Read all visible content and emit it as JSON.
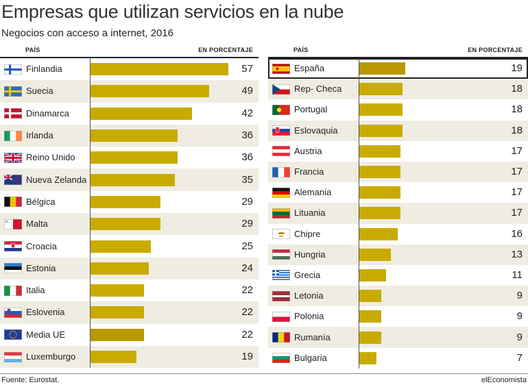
{
  "title": "Empresas que utilizan servicios en la nube",
  "subtitle": "Negocios con acceso a internet, 2016",
  "header": {
    "country_label": "PAÍS",
    "unit_label": "EN PORCENTAJE"
  },
  "source": "Fuente: Eurostat.",
  "brand": "elEconomista",
  "colors": {
    "bar": "#c9ab00",
    "bar_emphasis": "#b99800",
    "row_shade": "#efece2"
  },
  "chart_data": [
    {
      "type": "bar",
      "orientation": "horizontal",
      "unit": "EN PORCENTAJE",
      "xlim": [
        0,
        60
      ],
      "categories": [
        "Finlandia",
        "Suecia",
        "Dinamarca",
        "Irlanda",
        "Reino Unido",
        "Nueva Zelanda",
        "Bélgica",
        "Malta",
        "Croacia",
        "Estonia",
        "Italia",
        "Eslovenia",
        "Media UE",
        "Luxemburgo"
      ],
      "flags": [
        "flag-finland-icon",
        "flag-sweden-icon",
        "flag-denmark-icon",
        "flag-ireland-icon",
        "flag-uk-icon",
        "flag-new-zealand-icon",
        "flag-belgium-icon",
        "flag-malta-icon",
        "flag-croatia-icon",
        "flag-estonia-icon",
        "flag-italy-icon",
        "flag-slovenia-icon",
        "flag-eu-icon",
        "flag-luxembourg-icon"
      ],
      "values": [
        57,
        49,
        42,
        36,
        36,
        35,
        29,
        29,
        25,
        24,
        22,
        22,
        22,
        19
      ],
      "value_labels": [
        "57",
        "49",
        "42",
        "36",
        "36",
        "35",
        "29",
        "29",
        "25",
        "24",
        "22",
        "22",
        "22",
        "19"
      ],
      "emphasis": [
        "Media UE"
      ]
    },
    {
      "type": "bar",
      "orientation": "horizontal",
      "unit": "EN PORCENTAJE",
      "xlim": [
        0,
        60
      ],
      "categories": [
        "España",
        "Rep- Checa",
        "Portugal",
        "Eslovaquia",
        "Austria",
        "Francia",
        "Alemania",
        "Lituania",
        "Chipre",
        "Hungria",
        "Grecia",
        "Letonia",
        "Polonia",
        "Rumanía",
        "Bulgaria"
      ],
      "flags": [
        "flag-spain-icon",
        "flag-czech-icon",
        "flag-portugal-icon",
        "flag-slovakia-icon",
        "flag-austria-icon",
        "flag-france-icon",
        "flag-germany-icon",
        "flag-lithuania-icon",
        "flag-cyprus-icon",
        "flag-hungary-icon",
        "flag-greece-icon",
        "flag-latvia-icon",
        "flag-poland-icon",
        "flag-romania-icon",
        "flag-bulgaria-icon"
      ],
      "values": [
        19,
        18,
        18,
        18,
        17,
        17,
        17,
        17,
        16,
        13,
        11,
        9,
        9,
        9,
        7
      ],
      "value_labels": [
        "19",
        "18",
        "18",
        "18",
        "17",
        "17",
        "17",
        "17",
        "16",
        "13",
        "11",
        "9",
        "9",
        "9",
        "7"
      ],
      "emphasis": [
        "España"
      ]
    }
  ]
}
